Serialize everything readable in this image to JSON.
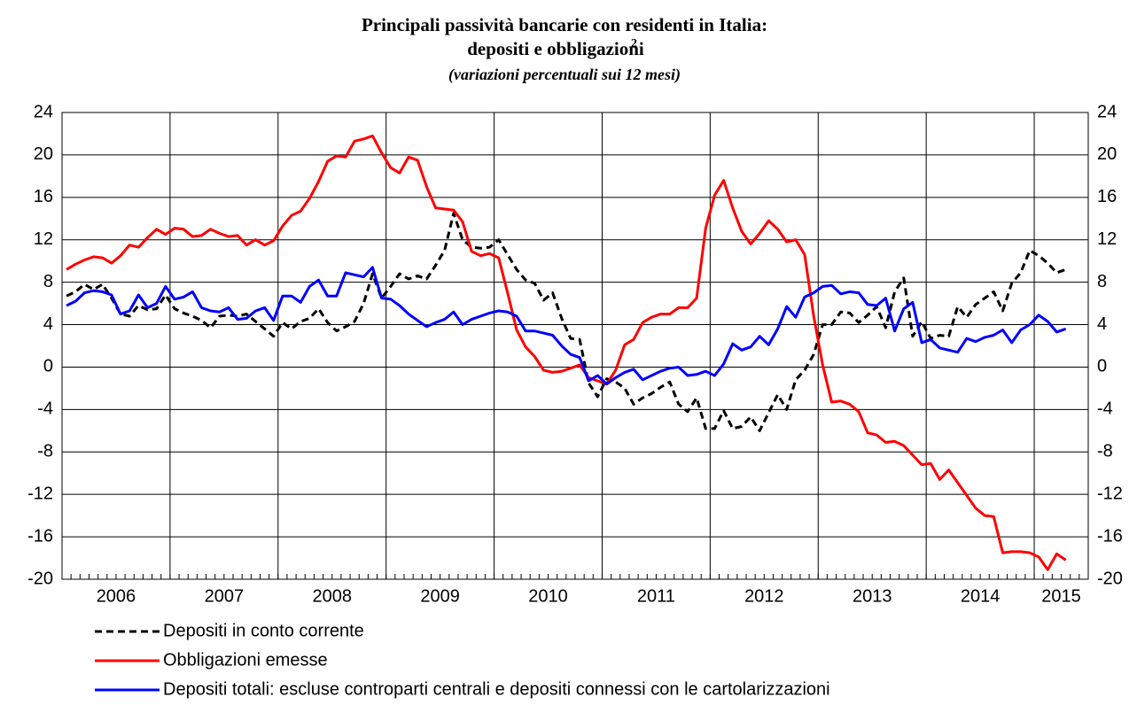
{
  "chart_data": {
    "type": "line",
    "title": "Principali passività bancarie con residenti in Italia:",
    "title_line2": "depositi e obbligazioni",
    "title_note": "2",
    "subtitle": "(variazioni percentuali sui 12 mesi)",
    "categories": [
      "2006",
      null,
      null,
      null,
      null,
      null,
      null,
      null,
      null,
      null,
      null,
      null,
      "2007",
      null,
      null,
      null,
      null,
      null,
      null,
      null,
      null,
      null,
      null,
      null,
      "2008",
      null,
      null,
      null,
      null,
      null,
      null,
      null,
      null,
      null,
      null,
      null,
      "2009",
      null,
      null,
      null,
      null,
      null,
      null,
      null,
      null,
      null,
      null,
      null,
      "2010",
      null,
      null,
      null,
      null,
      null,
      null,
      null,
      null,
      null,
      null,
      null,
      "2011",
      null,
      null,
      null,
      null,
      null,
      null,
      null,
      null,
      null,
      null,
      null,
      "2012",
      null,
      null,
      null,
      null,
      null,
      null,
      null,
      null,
      null,
      null,
      null,
      "2013",
      null,
      null,
      null,
      null,
      null,
      null,
      null,
      null,
      null,
      null,
      null,
      "2014",
      null,
      null,
      null,
      null,
      null,
      null,
      null,
      null,
      null,
      null,
      null,
      "2015",
      null,
      null,
      null
    ],
    "series": [
      {
        "name": "Depositi in conto corrente",
        "color": "#000000",
        "dash": true,
        "values": [
          6.7,
          7.1,
          7.8,
          7.3,
          7.8,
          6.5,
          5.0,
          4.8,
          5.8,
          5.4,
          5.5,
          6.8,
          5.5,
          5.1,
          4.8,
          4.4,
          3.7,
          4.8,
          4.9,
          4.8,
          5.0,
          4.3,
          3.6,
          2.9,
          4.2,
          3.6,
          4.3,
          4.6,
          5.5,
          4.2,
          3.4,
          3.8,
          4.3,
          6.0,
          8.8,
          6.5,
          7.6,
          8.8,
          8.3,
          8.6,
          8.3,
          9.6,
          11.0,
          14.5,
          12.0,
          11.3,
          11.2,
          11.3,
          12.0,
          10.6,
          9.2,
          8.2,
          7.9,
          6.3,
          7.0,
          4.6,
          2.7,
          2.6,
          -1.5,
          -2.8,
          -1.1,
          -1.4,
          -2.0,
          -3.5,
          -2.9,
          -2.5,
          -1.9,
          -1.4,
          -3.5,
          -4.2,
          -2.9,
          -5.8,
          -5.8,
          -4.1,
          -5.8,
          -5.6,
          -4.7,
          -6.0,
          -4.3,
          -2.6,
          -4.0,
          -1.2,
          -0.3,
          1.2,
          4.0,
          4.0,
          5.2,
          5.1,
          4.2,
          4.9,
          5.7,
          3.7,
          7.1,
          8.4,
          2.9,
          4.3,
          2.7,
          3.0,
          2.9,
          5.7,
          4.7,
          5.9,
          6.5,
          7.1,
          5.3,
          7.9,
          8.9,
          11.0,
          10.5,
          9.8,
          8.9,
          9.2
        ]
      },
      {
        "name": "Obbligazioni emesse",
        "color": "#ff0000",
        "dash": false,
        "values": [
          9.2,
          9.7,
          10.1,
          10.4,
          10.3,
          9.8,
          10.5,
          11.5,
          11.3,
          12.2,
          13.0,
          12.5,
          13.1,
          13.0,
          12.3,
          12.4,
          13.0,
          12.6,
          12.3,
          12.4,
          11.5,
          12.0,
          11.5,
          11.9,
          13.3,
          14.3,
          14.7,
          15.9,
          17.5,
          19.4,
          19.9,
          19.8,
          21.3,
          21.5,
          21.8,
          20.2,
          18.8,
          18.3,
          19.8,
          19.5,
          17.0,
          15.0,
          14.9,
          14.8,
          13.7,
          10.9,
          10.5,
          10.7,
          10.3,
          7.0,
          3.5,
          1.9,
          1.0,
          -0.3,
          -0.5,
          -0.4,
          -0.1,
          0.2,
          -1.0,
          -1.3,
          -1.6,
          -0.3,
          2.1,
          2.6,
          4.2,
          4.7,
          5.0,
          5.0,
          5.6,
          5.6,
          6.5,
          13.1,
          16.2,
          17.6,
          15.0,
          12.8,
          11.6,
          12.6,
          13.8,
          13.0,
          11.8,
          12.0,
          10.6,
          4.8,
          0.2,
          -3.3,
          -3.2,
          -3.5,
          -4.2,
          -6.2,
          -6.4,
          -7.1,
          -7.0,
          -7.4,
          -8.3,
          -9.2,
          -9.1,
          -10.6,
          -9.7,
          -10.9,
          -12.1,
          -13.3,
          -14.0,
          -14.1,
          -17.5,
          -17.4,
          -17.4,
          -17.5,
          -17.9,
          -19.1,
          -17.6,
          -18.2
        ]
      },
      {
        "name": "Depositi totali: escluse controparti centrali e depositi connessi con le cartolarizzazioni",
        "color": "#0000ff",
        "dash": false,
        "values": [
          5.8,
          6.2,
          7.0,
          7.2,
          7.1,
          6.8,
          5.0,
          5.3,
          6.8,
          5.6,
          6.0,
          7.6,
          6.4,
          6.6,
          7.1,
          5.6,
          5.3,
          5.2,
          5.6,
          4.5,
          4.6,
          5.3,
          5.6,
          4.4,
          6.7,
          6.7,
          6.1,
          7.6,
          8.2,
          6.7,
          6.7,
          8.9,
          8.7,
          8.5,
          9.4,
          6.5,
          6.4,
          5.8,
          5.0,
          4.4,
          3.8,
          4.2,
          4.5,
          5.2,
          4.0,
          4.5,
          4.8,
          5.1,
          5.3,
          5.2,
          4.8,
          3.4,
          3.4,
          3.2,
          3.0,
          2.0,
          1.2,
          0.9,
          -1.3,
          -0.8,
          -1.6,
          -1.0,
          -0.5,
          -0.2,
          -1.2,
          -0.8,
          -0.4,
          -0.1,
          0.0,
          -0.8,
          -0.7,
          -0.4,
          -0.8,
          0.3,
          2.2,
          1.6,
          1.9,
          2.9,
          2.1,
          3.6,
          5.7,
          4.7,
          6.6,
          7.0,
          7.6,
          7.7,
          6.9,
          7.1,
          7.0,
          5.9,
          5.8,
          6.5,
          3.4,
          5.5,
          6.1,
          2.3,
          2.6,
          1.8,
          1.6,
          1.4,
          2.7,
          2.4,
          2.8,
          3.0,
          3.5,
          2.3,
          3.5,
          4.0,
          4.9,
          4.3,
          3.3,
          3.6
        ]
      }
    ],
    "ylim": [
      -20,
      24
    ],
    "yticks": [
      -20,
      -16,
      -12,
      -8,
      -4,
      0,
      4,
      8,
      12,
      16,
      20,
      24
    ],
    "right_axis": true
  }
}
